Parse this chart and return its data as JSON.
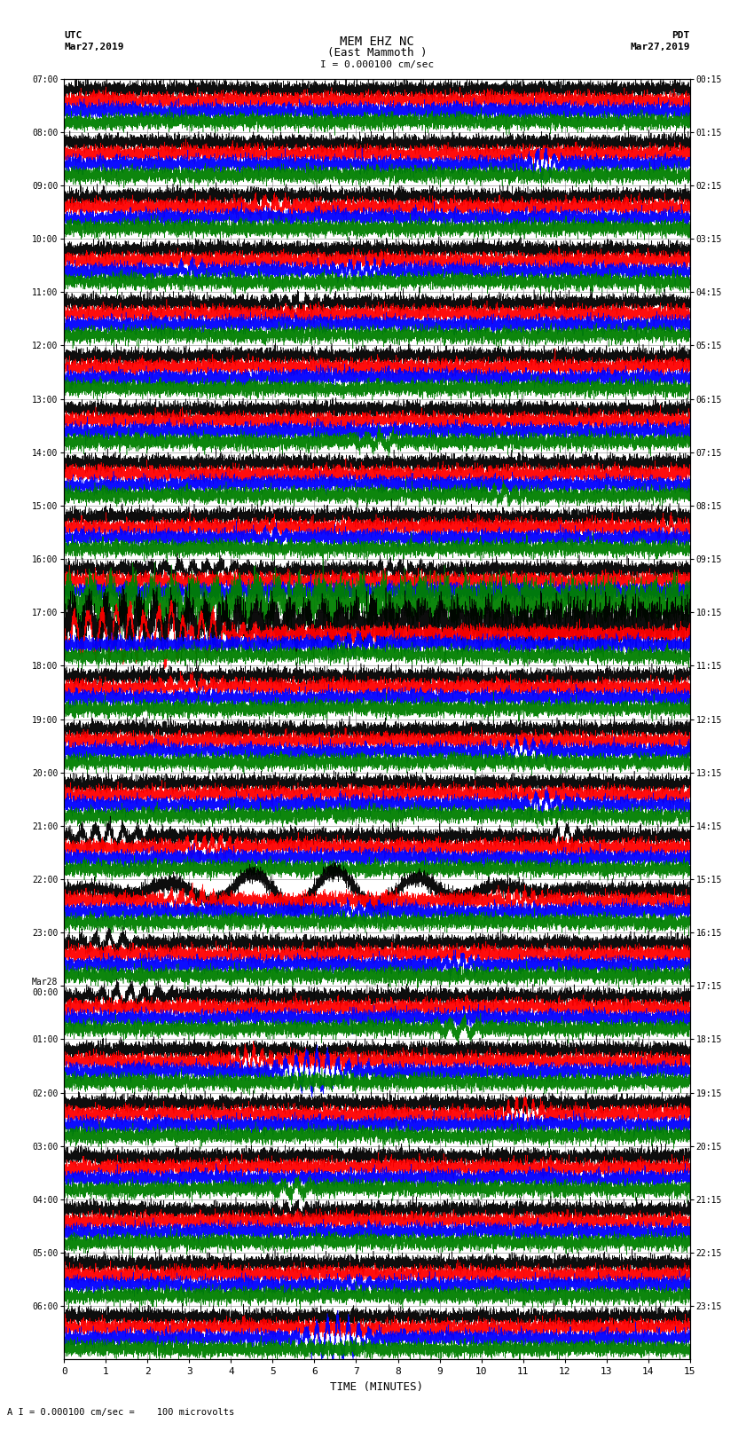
{
  "title_line1": "MEM EHZ NC",
  "title_line2": "(East Mammoth )",
  "scale_label": "I = 0.000100 cm/sec",
  "footer_label": "A I = 0.000100 cm/sec =    100 microvolts",
  "utc_label": "UTC\nMar27,2019",
  "pdt_label": "PDT\nMar27,2019",
  "xlabel": "TIME (MINUTES)",
  "left_times": [
    "07:00",
    "08:00",
    "09:00",
    "10:00",
    "11:00",
    "12:00",
    "13:00",
    "14:00",
    "15:00",
    "16:00",
    "17:00",
    "18:00",
    "19:00",
    "20:00",
    "21:00",
    "22:00",
    "23:00",
    "Mar28\n00:00",
    "01:00",
    "02:00",
    "03:00",
    "04:00",
    "05:00",
    "06:00"
  ],
  "right_times": [
    "00:15",
    "01:15",
    "02:15",
    "03:15",
    "04:15",
    "05:15",
    "06:15",
    "07:15",
    "08:15",
    "09:15",
    "10:15",
    "11:15",
    "12:15",
    "13:15",
    "14:15",
    "15:15",
    "16:15",
    "17:15",
    "18:15",
    "19:15",
    "20:15",
    "21:15",
    "22:15",
    "23:15"
  ],
  "n_rows": 24,
  "n_traces_per_row": 4,
  "trace_colors": [
    "black",
    "red",
    "blue",
    "green"
  ],
  "bg_color": "#ffffff",
  "xmin": 0,
  "xmax": 15,
  "xticks": [
    0,
    1,
    2,
    3,
    4,
    5,
    6,
    7,
    8,
    9,
    10,
    11,
    12,
    13,
    14,
    15
  ],
  "figsize": [
    8.5,
    16.13
  ],
  "dpi": 100
}
